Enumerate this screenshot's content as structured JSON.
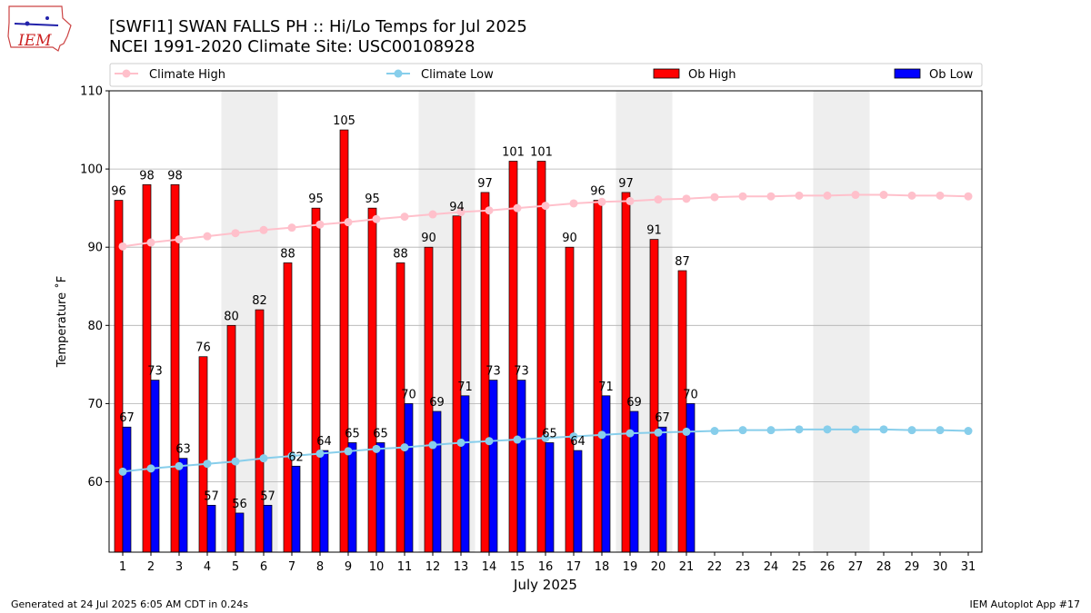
{
  "title_line1": "[SWFI1] SWAN FALLS PH :: Hi/Lo Temps for Jul 2025",
  "title_line2": "NCEI 1991-2020 Climate Site: USC00108928",
  "logo_text": "IEM",
  "footer_left": "Generated at 24 Jul 2025 6:05 AM CDT in 0.24s",
  "footer_right": "IEM Autoplot App #17",
  "colors": {
    "ob_high": "#ff0000",
    "ob_low": "#0000ff",
    "climate_high": "#ffc0cb",
    "climate_low": "#87ceeb",
    "weekend_shade": "#eeeeee",
    "grid": "#b0b0b0"
  },
  "chart_data": {
    "type": "bar",
    "xlabel": "July 2025",
    "ylabel": "Temperature ˚F",
    "ylim": [
      51,
      110
    ],
    "yticks": [
      60,
      70,
      80,
      90,
      100,
      110
    ],
    "legend_placement": "top, horizontal",
    "grid": "horizontal",
    "days": [
      1,
      2,
      3,
      4,
      5,
      6,
      7,
      8,
      9,
      10,
      11,
      12,
      13,
      14,
      15,
      16,
      17,
      18,
      19,
      20,
      21,
      22,
      23,
      24,
      25,
      26,
      27,
      28,
      29,
      30,
      31
    ],
    "shaded_days": [
      5,
      6,
      12,
      13,
      19,
      20,
      26,
      27
    ],
    "series": [
      {
        "name": "Ob High",
        "kind": "bar",
        "values": [
          96,
          98,
          98,
          76,
          80,
          82,
          88,
          95,
          105,
          95,
          88,
          90,
          94,
          97,
          101,
          101,
          90,
          96,
          97,
          91,
          87
        ]
      },
      {
        "name": "Ob Low",
        "kind": "bar",
        "values": [
          67,
          73,
          63,
          57,
          56,
          57,
          62,
          64,
          65,
          65,
          70,
          69,
          71,
          73,
          73,
          65,
          64,
          71,
          69,
          67,
          70
        ]
      },
      {
        "name": "Climate High",
        "kind": "line",
        "values": [
          90.1,
          90.6,
          91.0,
          91.4,
          91.8,
          92.2,
          92.5,
          92.9,
          93.2,
          93.6,
          93.9,
          94.2,
          94.5,
          94.7,
          95.0,
          95.3,
          95.6,
          95.8,
          95.9,
          96.1,
          96.2,
          96.4,
          96.5,
          96.5,
          96.6,
          96.6,
          96.7,
          96.7,
          96.6,
          96.6,
          96.5
        ]
      },
      {
        "name": "Climate Low",
        "kind": "line",
        "values": [
          61.3,
          61.7,
          62.0,
          62.3,
          62.6,
          63.0,
          63.3,
          63.6,
          63.9,
          64.2,
          64.4,
          64.7,
          65.0,
          65.2,
          65.4,
          65.6,
          65.8,
          66.0,
          66.2,
          66.3,
          66.4,
          66.5,
          66.6,
          66.6,
          66.7,
          66.7,
          66.7,
          66.7,
          66.6,
          66.6,
          66.5
        ]
      }
    ]
  }
}
